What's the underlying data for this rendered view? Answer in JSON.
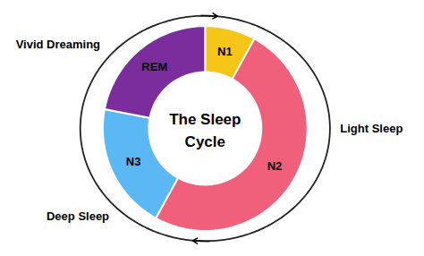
{
  "chart_data": {
    "type": "pie",
    "categories": [
      "N1",
      "N2",
      "N3",
      "REM"
    ],
    "values": [
      8,
      50,
      20,
      22
    ],
    "colors": [
      "#F5C518",
      "#F0607A",
      "#5BB8F5",
      "#7B2D9E"
    ],
    "annotations": [
      "The Sleep",
      "Cycle",
      "Vivid Dreaming",
      "Deep Sleep",
      "Light Sleep"
    ]
  }
}
